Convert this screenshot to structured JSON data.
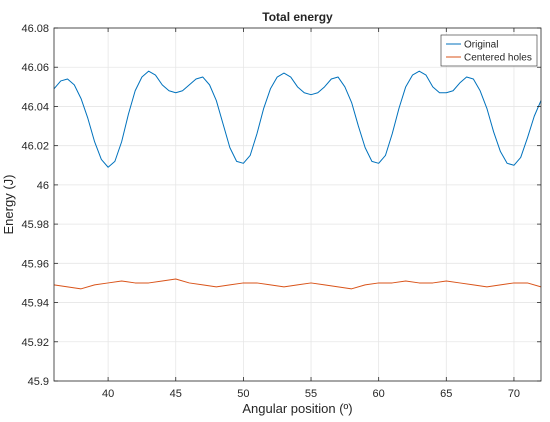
{
  "chart_data": {
    "type": "line",
    "title": "Total energy",
    "xlabel": "Angular position (º)",
    "ylabel": "Energy (J)",
    "xlim": [
      36,
      72
    ],
    "ylim": [
      45.9,
      46.08
    ],
    "xticks": [
      40,
      45,
      50,
      55,
      60,
      65,
      70
    ],
    "xtick_labels": [
      "40",
      "45",
      "50",
      "55",
      "60",
      "65",
      "70"
    ],
    "yticks": [
      45.9,
      45.92,
      45.94,
      45.96,
      45.98,
      46,
      46.02,
      46.04,
      46.06,
      46.08
    ],
    "ytick_labels": [
      "45.9",
      "45.92",
      "45.94",
      "45.96",
      "45.98",
      "46",
      "46.02",
      "46.04",
      "46.06",
      "46.08"
    ],
    "grid": true,
    "legend_position": "top-right",
    "series": [
      {
        "name": "Original",
        "color": "#0072BD",
        "x": [
          36,
          36.5,
          37,
          37.5,
          38,
          38.5,
          39,
          39.5,
          40,
          40.5,
          41,
          41.5,
          42,
          42.5,
          43,
          43.5,
          44,
          44.5,
          45,
          45.5,
          46,
          46.5,
          47,
          47.5,
          48,
          48.5,
          49,
          49.5,
          50,
          50.5,
          51,
          51.5,
          52,
          52.5,
          53,
          53.5,
          54,
          54.5,
          55,
          55.5,
          56,
          56.5,
          57,
          57.5,
          58,
          58.5,
          59,
          59.5,
          60,
          60.5,
          61,
          61.5,
          62,
          62.5,
          63,
          63.5,
          64,
          64.5,
          65,
          65.5,
          66,
          66.5,
          67,
          67.5,
          68,
          68.5,
          69,
          69.5,
          70,
          70.5,
          71,
          71.5,
          72
        ],
        "y": [
          46.049,
          46.053,
          46.054,
          46.051,
          46.044,
          46.034,
          46.022,
          46.013,
          46.009,
          46.012,
          46.022,
          46.036,
          46.048,
          46.055,
          46.058,
          46.056,
          46.051,
          46.048,
          46.047,
          46.048,
          46.051,
          46.054,
          46.055,
          46.051,
          46.043,
          46.031,
          46.019,
          46.012,
          46.011,
          46.015,
          46.026,
          46.039,
          46.049,
          46.055,
          46.057,
          46.055,
          46.05,
          46.047,
          46.046,
          46.047,
          46.05,
          46.054,
          46.055,
          46.05,
          46.042,
          46.03,
          46.019,
          46.012,
          46.011,
          46.015,
          46.026,
          46.039,
          46.05,
          46.056,
          46.058,
          46.056,
          46.05,
          46.047,
          46.047,
          46.048,
          46.052,
          46.055,
          46.054,
          46.048,
          46.039,
          46.027,
          46.017,
          46.011,
          46.01,
          46.014,
          46.024,
          46.035,
          46.043
        ]
      },
      {
        "name": "Centered holes",
        "color": "#D95319",
        "x": [
          36,
          37,
          38,
          39,
          40,
          41,
          42,
          43,
          44,
          45,
          46,
          47,
          48,
          49,
          50,
          51,
          52,
          53,
          54,
          55,
          56,
          57,
          58,
          59,
          60,
          61,
          62,
          63,
          64,
          65,
          66,
          67,
          68,
          69,
          70,
          71,
          72
        ],
        "y": [
          45.949,
          45.948,
          45.947,
          45.949,
          45.95,
          45.951,
          45.95,
          45.95,
          45.951,
          45.952,
          45.95,
          45.949,
          45.948,
          45.949,
          45.95,
          45.95,
          45.949,
          45.948,
          45.949,
          45.95,
          45.949,
          45.948,
          45.947,
          45.949,
          45.95,
          45.95,
          45.951,
          45.95,
          45.95,
          45.951,
          45.95,
          45.949,
          45.948,
          45.949,
          45.95,
          45.95,
          45.948
        ]
      }
    ]
  }
}
